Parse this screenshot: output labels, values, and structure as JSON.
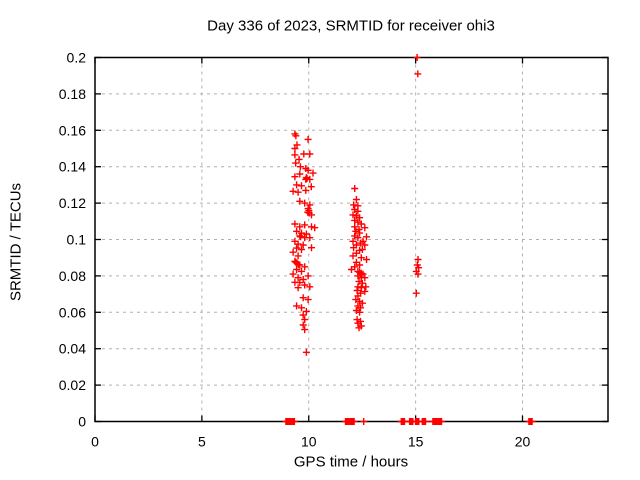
{
  "figure": {
    "title": "Day 336 of 2023, SRMTID for receiver ohi3",
    "xlabel": "GPS time / hours",
    "ylabel": "SRMTID / TECUs"
  },
  "chart_data": {
    "type": "scatter",
    "title": "Day 336 of 2023, SRMTID for receiver ohi3",
    "xlabel": "GPS time / hours",
    "ylabel": "SRMTID / TECUs",
    "xlim": [
      0,
      24
    ],
    "ylim": [
      0,
      0.2
    ],
    "xticks": {
      "values": [
        0,
        5,
        10,
        15,
        20
      ],
      "labels": [
        "0",
        "5",
        "10",
        "15",
        "20"
      ]
    },
    "yticks": {
      "values": [
        0,
        0.02,
        0.04,
        0.06,
        0.08,
        0.1,
        0.12,
        0.14,
        0.16,
        0.18,
        0.2
      ],
      "labels": [
        "0",
        "0.02",
        "0.04",
        "0.06",
        "0.08",
        "0.1",
        "0.12",
        "0.14",
        "0.16",
        "0.18",
        "0.2"
      ]
    },
    "grid": true,
    "legend_position": "none",
    "marker": "plus",
    "marker_color": "#ff0000",
    "grid_color": "#b0b0b0",
    "border_color": "#000000",
    "series": [
      {
        "name": "SRMTID",
        "points": [
          [
            9.35,
            0.158
          ],
          [
            9.4,
            0.157
          ],
          [
            9.97,
            0.155
          ],
          [
            9.45,
            0.152
          ],
          [
            9.35,
            0.15
          ],
          [
            9.77,
            0.147
          ],
          [
            10.05,
            0.147
          ],
          [
            9.35,
            0.1465
          ],
          [
            9.55,
            0.144
          ],
          [
            9.39,
            0.142
          ],
          [
            9.61,
            0.14
          ],
          [
            9.86,
            0.139
          ],
          [
            9.97,
            0.138
          ],
          [
            10.2,
            0.1365
          ],
          [
            9.58,
            0.136
          ],
          [
            9.35,
            0.1345
          ],
          [
            9.89,
            0.134
          ],
          [
            9.92,
            0.1335
          ],
          [
            9.86,
            0.133
          ],
          [
            10.05,
            0.133
          ],
          [
            9.43,
            0.13
          ],
          [
            9.66,
            0.1295
          ],
          [
            10.12,
            0.129
          ],
          [
            9.86,
            0.127
          ],
          [
            9.27,
            0.1265
          ],
          [
            9.5,
            0.126
          ],
          [
            9.58,
            0.121
          ],
          [
            9.81,
            0.12
          ],
          [
            10.05,
            0.119
          ],
          [
            9.97,
            0.117
          ],
          [
            10.0,
            0.116
          ],
          [
            9.95,
            0.115
          ],
          [
            10.02,
            0.1145
          ],
          [
            10.13,
            0.1135
          ],
          [
            9.35,
            0.1085
          ],
          [
            9.81,
            0.108
          ],
          [
            9.58,
            0.107
          ],
          [
            10.13,
            0.107
          ],
          [
            10.28,
            0.1065
          ],
          [
            9.43,
            0.1045
          ],
          [
            9.66,
            0.1035
          ],
          [
            9.89,
            0.103
          ],
          [
            9.58,
            0.102
          ],
          [
            9.62,
            0.1015
          ],
          [
            9.81,
            0.101
          ],
          [
            10.05,
            0.101
          ],
          [
            9.35,
            0.099
          ],
          [
            9.5,
            0.0975
          ],
          [
            9.74,
            0.097
          ],
          [
            10.13,
            0.0955
          ],
          [
            9.43,
            0.0953
          ],
          [
            9.66,
            0.0945
          ],
          [
            9.27,
            0.093
          ],
          [
            9.5,
            0.091
          ],
          [
            9.35,
            0.088
          ],
          [
            9.4,
            0.0875
          ],
          [
            9.45,
            0.087
          ],
          [
            9.58,
            0.086
          ],
          [
            9.52,
            0.0862
          ],
          [
            9.81,
            0.085
          ],
          [
            9.43,
            0.0835
          ],
          [
            9.66,
            0.0825
          ],
          [
            9.27,
            0.081
          ],
          [
            9.97,
            0.08
          ],
          [
            9.5,
            0.079
          ],
          [
            9.74,
            0.078
          ],
          [
            9.35,
            0.0765
          ],
          [
            9.58,
            0.0763
          ],
          [
            9.81,
            0.075
          ],
          [
            9.5,
            0.0735
          ],
          [
            10.05,
            0.074
          ],
          [
            9.74,
            0.068
          ],
          [
            9.97,
            0.067
          ],
          [
            9.43,
            0.0635
          ],
          [
            9.66,
            0.0625
          ],
          [
            9.89,
            0.0605
          ],
          [
            9.74,
            0.0585
          ],
          [
            9.81,
            0.056
          ],
          [
            9.74,
            0.053
          ],
          [
            9.81,
            0.0505
          ],
          [
            9.89,
            0.038
          ],
          [
            12.15,
            0.128
          ],
          [
            12.23,
            0.122
          ],
          [
            12.1,
            0.119
          ],
          [
            12.3,
            0.1185
          ],
          [
            12.15,
            0.1165
          ],
          [
            12.3,
            0.1155
          ],
          [
            12.07,
            0.1135
          ],
          [
            12.23,
            0.113
          ],
          [
            12.38,
            0.112
          ],
          [
            12.15,
            0.1105
          ],
          [
            12.3,
            0.1095
          ],
          [
            12.46,
            0.1085
          ],
          [
            12.62,
            0.1065
          ],
          [
            12.15,
            0.107
          ],
          [
            12.35,
            0.1055
          ],
          [
            12.2,
            0.1045
          ],
          [
            12.38,
            0.1035
          ],
          [
            12.15,
            0.102
          ],
          [
            12.7,
            0.1015
          ],
          [
            12.3,
            0.101
          ],
          [
            12.07,
            0.099
          ],
          [
            12.54,
            0.099
          ],
          [
            12.42,
            0.098
          ],
          [
            12.23,
            0.097
          ],
          [
            12.62,
            0.097
          ],
          [
            12.1,
            0.0955
          ],
          [
            12.38,
            0.094
          ],
          [
            12.51,
            0.0945
          ],
          [
            12.23,
            0.0925
          ],
          [
            12.07,
            0.091
          ],
          [
            12.46,
            0.09
          ],
          [
            12.7,
            0.089
          ],
          [
            12.23,
            0.0875
          ],
          [
            12.38,
            0.086
          ],
          [
            12.15,
            0.085
          ],
          [
            12.0,
            0.0835
          ],
          [
            12.3,
            0.0825
          ],
          [
            12.38,
            0.082
          ],
          [
            12.54,
            0.081
          ],
          [
            12.46,
            0.0815
          ],
          [
            12.42,
            0.081
          ],
          [
            12.3,
            0.08
          ],
          [
            12.62,
            0.079
          ],
          [
            12.46,
            0.079
          ],
          [
            12.35,
            0.077
          ],
          [
            12.51,
            0.076
          ],
          [
            12.3,
            0.074
          ],
          [
            12.67,
            0.074
          ],
          [
            12.46,
            0.0735
          ],
          [
            12.26,
            0.072
          ],
          [
            12.42,
            0.0705
          ],
          [
            12.62,
            0.0715
          ],
          [
            12.3,
            0.069
          ],
          [
            12.2,
            0.067
          ],
          [
            12.38,
            0.066
          ],
          [
            12.51,
            0.065
          ],
          [
            12.3,
            0.0635
          ],
          [
            12.42,
            0.0625
          ],
          [
            12.23,
            0.061
          ],
          [
            12.38,
            0.06
          ],
          [
            12.26,
            0.056
          ],
          [
            12.42,
            0.055
          ],
          [
            12.3,
            0.054
          ],
          [
            12.46,
            0.0525
          ],
          [
            12.35,
            0.0515
          ],
          [
            15.07,
            0.2
          ],
          [
            15.1,
            0.191
          ],
          [
            15.11,
            0.089
          ],
          [
            15.08,
            0.086
          ],
          [
            15.14,
            0.0845
          ],
          [
            15.03,
            0.0825
          ],
          [
            15.11,
            0.081
          ],
          [
            15.03,
            0.0705
          ],
          [
            8.93,
            0
          ],
          [
            8.98,
            0
          ],
          [
            9.03,
            0
          ],
          [
            9.08,
            0
          ],
          [
            9.13,
            0
          ],
          [
            9.18,
            0
          ],
          [
            9.23,
            0
          ],
          [
            9.28,
            0
          ],
          [
            9.33,
            0
          ],
          [
            11.72,
            0
          ],
          [
            11.77,
            0
          ],
          [
            11.82,
            0
          ],
          [
            11.87,
            0
          ],
          [
            11.92,
            0
          ],
          [
            11.97,
            0
          ],
          [
            12.02,
            0
          ],
          [
            12.07,
            0
          ],
          [
            12.12,
            0
          ],
          [
            12.57,
            0
          ],
          [
            14.33,
            0
          ],
          [
            14.38,
            0
          ],
          [
            14.43,
            0
          ],
          [
            14.48,
            0
          ],
          [
            14.72,
            0
          ],
          [
            14.77,
            0
          ],
          [
            14.82,
            0
          ],
          [
            14.87,
            0
          ],
          [
            15.0,
            0
          ],
          [
            15.05,
            0
          ],
          [
            15.1,
            0
          ],
          [
            15.15,
            0
          ],
          [
            15.31,
            0
          ],
          [
            15.36,
            0
          ],
          [
            15.41,
            0
          ],
          [
            15.46,
            0
          ],
          [
            15.81,
            0
          ],
          [
            15.86,
            0
          ],
          [
            15.91,
            0
          ],
          [
            15.96,
            0
          ],
          [
            16.01,
            0
          ],
          [
            16.06,
            0
          ],
          [
            16.11,
            0
          ],
          [
            16.16,
            0
          ],
          [
            16.21,
            0
          ],
          [
            20.3,
            0
          ],
          [
            20.35,
            0
          ],
          [
            20.4,
            0
          ],
          [
            20.45,
            0
          ]
        ]
      }
    ]
  }
}
